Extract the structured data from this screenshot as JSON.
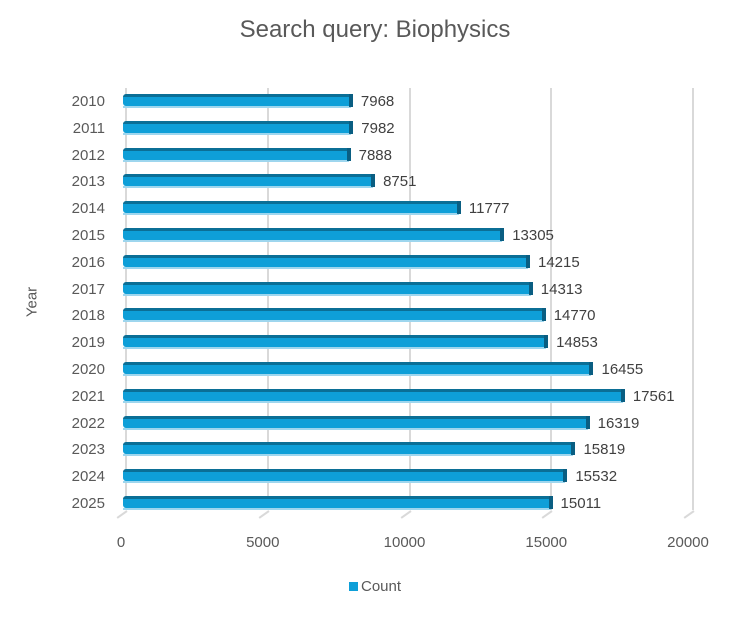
{
  "chart_data": {
    "type": "bar",
    "orientation": "horizontal",
    "style": "3d-clustered-bar",
    "title": "Search query: Biophysics",
    "xlabel": "",
    "ylabel": "Year",
    "categories": [
      "2010",
      "2011",
      "2012",
      "2013",
      "2014",
      "2015",
      "2016",
      "2017",
      "2018",
      "2019",
      "2020",
      "2021",
      "2022",
      "2023",
      "2024",
      "2025"
    ],
    "series": [
      {
        "name": "Count",
        "color": "#0e9fd8",
        "values": [
          7968,
          7982,
          7888,
          8751,
          11777,
          13305,
          14215,
          14313,
          14770,
          14853,
          16455,
          17561,
          16319,
          15819,
          15532,
          15011
        ]
      }
    ],
    "xlim": [
      0,
      20000
    ],
    "xticks": [
      "0",
      "5000",
      "10000",
      "15000",
      "20000"
    ],
    "grid": true,
    "data_labels": true,
    "legend": {
      "position": "bottom",
      "entries": [
        "Count"
      ]
    }
  }
}
